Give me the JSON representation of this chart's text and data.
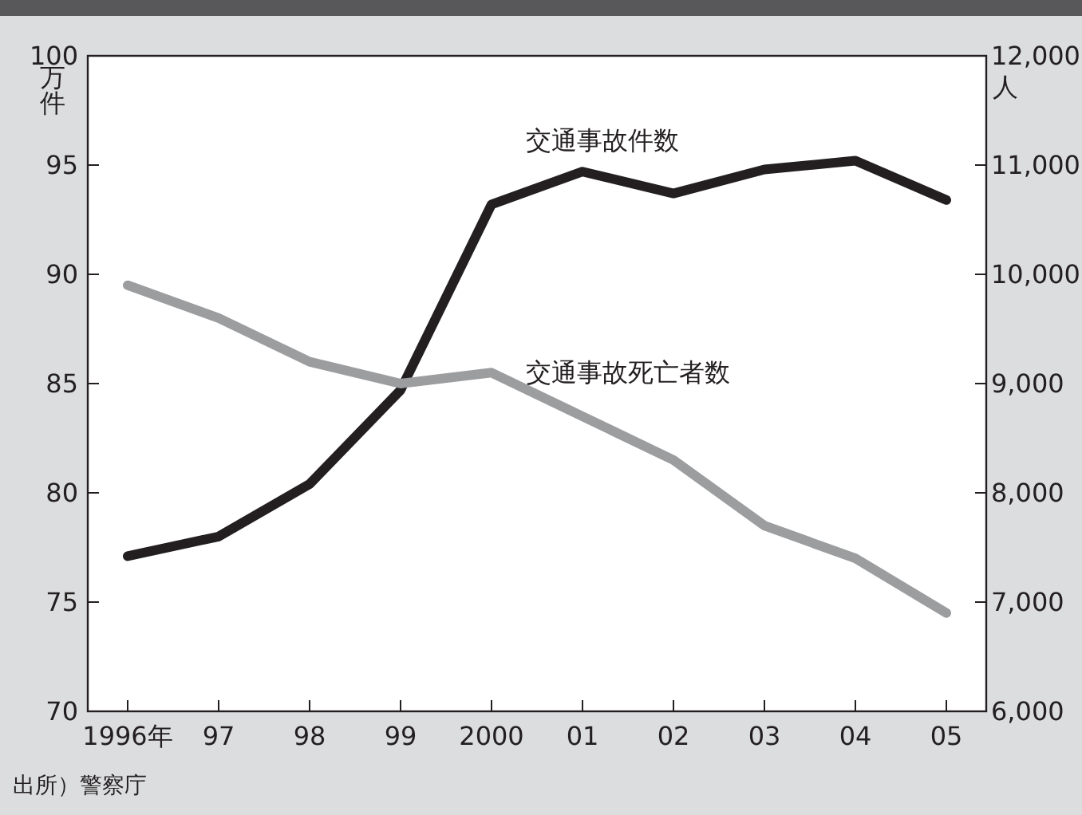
{
  "chart_data": {
    "type": "line",
    "categories": [
      "1996年",
      "97",
      "98",
      "99",
      "2000",
      "01",
      "02",
      "03",
      "04",
      "05"
    ],
    "ylabel": "万件",
    "y2label": "人",
    "ylim": [
      70,
      100
    ],
    "yticks": [
      70,
      75,
      80,
      85,
      90,
      95,
      100
    ],
    "y2lim": [
      6000,
      12000
    ],
    "y2ticks": [
      {
        "value": 6000,
        "label": "6,000"
      },
      {
        "value": 7000,
        "label": "7,000"
      },
      {
        "value": 8000,
        "label": "8,000"
      },
      {
        "value": 9000,
        "label": "9,000"
      },
      {
        "value": 10000,
        "label": "10,000"
      },
      {
        "value": 11000,
        "label": "11,000"
      },
      {
        "value": 12000,
        "label": "12,000"
      }
    ],
    "series": [
      {
        "name": "交通事故件数",
        "color": "#231f20",
        "values": [
          77.1,
          78.0,
          80.4,
          84.7,
          93.2,
          94.7,
          93.7,
          94.8,
          95.2,
          93.4
        ]
      },
      {
        "name": "交通事故死亡者数",
        "color": "#9c9d9f",
        "axis": "y2",
        "values": [
          9900,
          9600,
          9200,
          9000,
          9100,
          8700,
          8300,
          7700,
          7400,
          6900
        ]
      }
    ],
    "legend": false,
    "grid": false,
    "marker": "none",
    "line_style": "solid",
    "annotations": [
      "出所）警察庁"
    ]
  }
}
